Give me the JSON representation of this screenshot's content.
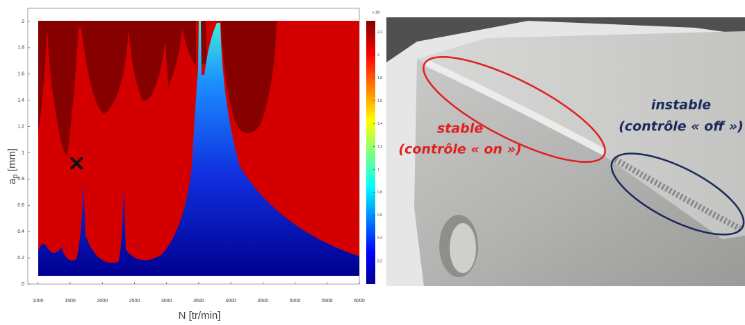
{
  "chart_data": {
    "type": "stability_map",
    "xlabel": "N [tr/min]",
    "ylabel": {
      "base": "a",
      "sub": "p",
      "unit": " [mm]"
    },
    "xlim": [
      840,
      6000
    ],
    "xticks": [
      1000,
      1500,
      2000,
      2500,
      3000,
      3500,
      4000,
      4500,
      5000,
      5500,
      6000
    ],
    "ylim": [
      0,
      2.1
    ],
    "yticks": [
      0,
      0.2,
      0.4,
      0.6,
      0.8,
      1,
      1.2,
      1.4,
      1.6,
      1.8,
      2
    ],
    "clim": [
      0,
      2.3
    ],
    "cticks": [
      0.2,
      0.4,
      0.6,
      0.8,
      1,
      1.2,
      1.4,
      1.6,
      1.8,
      2,
      2.2
    ],
    "colorbar_scale_label": "x 10⁴",
    "points": {
      "x": [
        1600
      ],
      "y": [
        0.92
      ],
      "color": "#111111"
    }
  },
  "photo": {
    "stable_label": "stable",
    "stable_note": "(contrôle « on »)",
    "unstable_label": "instable",
    "unstable_note": "(contrôle « off »)"
  }
}
